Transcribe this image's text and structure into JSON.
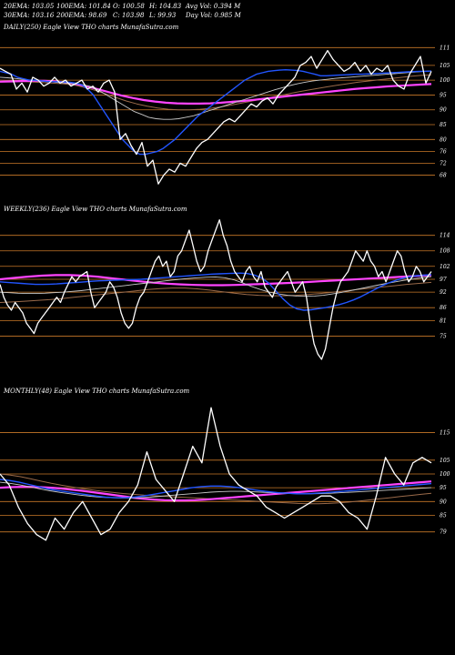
{
  "stats": {
    "ema20": "20EMA: 103.05",
    "ema100": "100EMA: 101.84",
    "open": "O: 100.58",
    "high": "H: 104.83",
    "avgvol": "Avg Vol: 0.394  M",
    "ema30": "30EMA: 103.16",
    "ema200": "200EMA: 98.69",
    "close": "C: 103.98",
    "low": "L: 99.93",
    "dayvol": "Day Vol: 0.985 M"
  },
  "colors": {
    "background": "#000000",
    "price": "#ffffff",
    "ema_short": "#2255ff",
    "ema_mid": "#c8c8c8",
    "ema_long": "#ff44ff",
    "ema_dark": "#9a6a4a",
    "hline": "#c87828"
  },
  "chart_data": [
    {
      "type": "line",
      "label": "DAILY(250) Eagle   View  THO charts MunafaSutra.com",
      "yticks": [
        111,
        105,
        100,
        95,
        90,
        85,
        80,
        76,
        72,
        68
      ],
      "ylim": [
        62,
        116
      ],
      "series": [
        {
          "role": "price",
          "values": [
            104,
            103,
            102,
            97,
            99,
            96,
            101,
            100,
            98,
            99,
            101,
            99,
            100,
            98,
            99,
            100,
            97,
            98,
            96,
            99,
            100,
            96,
            80,
            82,
            78,
            75,
            79,
            71,
            73,
            65,
            68,
            70,
            69,
            72,
            71,
            74,
            77,
            79,
            80,
            82,
            84,
            86,
            87,
            86,
            88,
            90,
            92,
            91,
            93,
            94,
            92,
            95,
            97,
            99,
            101,
            105,
            106,
            108,
            104,
            107,
            110,
            107,
            105,
            103,
            104,
            106,
            103,
            105,
            102,
            104,
            103,
            105,
            100,
            98,
            97,
            102,
            105,
            108,
            99,
            103
          ]
        },
        {
          "role": "ema_short",
          "values": [
            103,
            102.5,
            102,
            101,
            100.5,
            100,
            100,
            99.8,
            99.6,
            99.5,
            99.5,
            99.4,
            99.3,
            99,
            98.5,
            97,
            95,
            92,
            89,
            86,
            83,
            80,
            78,
            76,
            75,
            75,
            75.5,
            76,
            77,
            78.5,
            80,
            82,
            84,
            86,
            88,
            89.5,
            91,
            92.5,
            94,
            95.5,
            97,
            98.5,
            100,
            101,
            102,
            102.5,
            103,
            103.2,
            103.4,
            103.5,
            103.4,
            103.3,
            103,
            102.5,
            102,
            101.5,
            101.5,
            101.6,
            101.7,
            101.8,
            101.9,
            102,
            102,
            102.1,
            102.2,
            102.3,
            102.4,
            102.5,
            102.6,
            102.7,
            102.8,
            102.9,
            103,
            103,
            103.05
          ]
        },
        {
          "role": "ema_mid",
          "values": [
            101,
            100.8,
            100.6,
            100.3,
            100,
            99.8,
            99.6,
            99.4,
            99.2,
            99,
            98.8,
            98.5,
            98,
            97,
            95.5,
            94,
            92.5,
            91,
            89.5,
            88.5,
            87.5,
            87,
            86.8,
            86.8,
            87,
            87.5,
            88,
            88.8,
            89.6,
            90.4,
            91.2,
            92,
            92.8,
            93.6,
            94.4,
            95.2,
            96,
            96.8,
            97.5,
            98.2,
            98.8,
            99.3,
            99.7,
            100,
            100.3,
            100.6,
            100.8,
            101,
            101.2,
            101.4,
            101.6,
            101.8,
            102,
            102.2,
            102.4,
            102.6,
            102.8,
            103,
            103.16
          ]
        },
        {
          "role": "ema_dark",
          "values": [
            100,
            99.8,
            99.6,
            99.4,
            99.2,
            99,
            98.8,
            98.4,
            97.6,
            96.6,
            95.4,
            94.2,
            93,
            92,
            91.2,
            90.6,
            90.2,
            90,
            90,
            90.2,
            90.5,
            91,
            91.6,
            92.3,
            93,
            93.7,
            94.4,
            95.1,
            95.8,
            96.5,
            97.1,
            97.7,
            98.3,
            98.8,
            99.3,
            99.7,
            100.1,
            100.5,
            100.9,
            101.3,
            101.6,
            101.84
          ]
        },
        {
          "role": "ema_long",
          "values": [
            99.5,
            99.6,
            99.7,
            99.8,
            99.8,
            99.6,
            99.2,
            98.6,
            97.8,
            96.8,
            95.8,
            94.8,
            94,
            93.3,
            92.8,
            92.4,
            92.2,
            92.1,
            92.1,
            92.2,
            92.4,
            92.7,
            93,
            93.4,
            93.8,
            94.2,
            94.6,
            95,
            95.4,
            95.8,
            96.2,
            96.6,
            97,
            97.3,
            97.6,
            97.9,
            98.1,
            98.3,
            98.5,
            98.69
          ]
        }
      ]
    },
    {
      "type": "line",
      "label": "WEEKLY(236) Eagle   View  THO charts MunafaSutra.com",
      "yticks": [
        114,
        108,
        102,
        97,
        92,
        86,
        81,
        75
      ],
      "ylim": [
        60,
        122
      ],
      "series": [
        {
          "role": "price",
          "values": [
            95,
            90,
            87,
            85,
            88,
            86,
            84,
            80,
            78,
            76,
            80,
            82,
            84,
            86,
            88,
            90,
            88,
            92,
            95,
            98,
            96,
            98,
            99,
            100,
            92,
            86,
            88,
            90,
            92,
            96,
            94,
            90,
            84,
            80,
            78,
            80,
            86,
            90,
            92,
            96,
            100,
            104,
            106,
            102,
            104,
            98,
            100,
            106,
            108,
            112,
            116,
            110,
            104,
            100,
            102,
            108,
            112,
            116,
            120,
            114,
            110,
            104,
            100,
            98,
            96,
            100,
            102,
            98,
            96,
            100,
            94,
            92,
            90,
            94,
            96,
            98,
            100,
            96,
            92,
            94,
            96,
            90,
            80,
            72,
            68,
            66,
            70,
            78,
            86,
            92,
            96,
            98,
            100,
            104,
            108,
            106,
            104,
            108,
            104,
            102,
            98,
            100,
            96,
            100,
            104,
            108,
            106,
            100,
            96,
            98,
            102,
            100,
            96,
            98,
            100
          ]
        },
        {
          "role": "ema_short",
          "values": [
            96,
            95.8,
            95.6,
            95.4,
            95.2,
            95,
            95,
            95.1,
            95.2,
            95.4,
            95.6,
            95.8,
            96,
            96.2,
            96.4,
            96.5,
            96.6,
            96.7,
            96.8,
            96.9,
            97,
            97.2,
            97.4,
            97.6,
            97.8,
            98,
            98.2,
            98.4,
            98.6,
            98.8,
            99,
            99.1,
            99.2,
            99.3,
            99.4,
            99.2,
            98.6,
            97.5,
            95.5,
            92.5,
            89.5,
            87,
            85.5,
            85,
            85.2,
            85.6,
            86,
            86.6,
            87.2,
            88,
            89,
            90.2,
            91.6,
            93,
            94.4,
            95.6,
            96.6,
            97.4,
            98,
            98.4,
            98.6,
            98.8
          ]
        },
        {
          "role": "ema_mid",
          "values": [
            92,
            91.8,
            91.6,
            91.5,
            91.5,
            91.6,
            91.8,
            92,
            92.3,
            92.6,
            93,
            93.4,
            93.8,
            94.2,
            94.6,
            95,
            95.4,
            95.8,
            96.2,
            96.6,
            97,
            97.3,
            97.6,
            97.8,
            97.9,
            97.6,
            96.8,
            95.6,
            94.2,
            93,
            92,
            91.3,
            90.8,
            90.5,
            90.4,
            90.5,
            90.8,
            91.3,
            91.9,
            92.6,
            93.3,
            94,
            94.7,
            95.4,
            96,
            96.6,
            97.1,
            97.6,
            98
          ]
        },
        {
          "role": "ema_dark",
          "values": [
            88,
            88.2,
            88.5,
            88.8,
            89.1,
            89.5,
            90,
            90.5,
            91,
            91.5,
            92,
            92.5,
            93,
            93.4,
            93.6,
            93.6,
            93.3,
            92.8,
            92.2,
            91.6,
            91.1,
            90.8,
            90.6,
            90.6,
            90.8,
            91.1,
            91.5,
            92,
            92.5,
            93,
            93.5,
            94,
            94.5,
            95,
            95.4,
            95.8
          ]
        },
        {
          "role": "ema_long",
          "values": [
            97,
            97.5,
            98,
            98.4,
            98.6,
            98.6,
            98.4,
            98,
            97.4,
            96.8,
            96.2,
            95.7,
            95.3,
            95,
            94.8,
            94.7,
            94.7,
            94.8,
            95,
            95.2,
            95.4,
            95.6,
            95.9,
            96.2,
            96.5,
            96.8,
            97.1,
            97.4,
            97.7,
            98,
            98.3,
            98.6
          ]
        }
      ]
    },
    {
      "type": "line",
      "label": "MONTHLY(48) Eagle   View  THO charts MunafaSutra.com",
      "yticks": [
        115,
        105,
        100,
        95,
        90,
        85,
        79
      ],
      "ylim": [
        70,
        128
      ],
      "series": [
        {
          "role": "price",
          "values": [
            100,
            96,
            88,
            82,
            78,
            76,
            84,
            80,
            86,
            90,
            84,
            78,
            80,
            86,
            90,
            96,
            108,
            98,
            94,
            90,
            100,
            110,
            104,
            124,
            110,
            100,
            96,
            94,
            92,
            88,
            86,
            84,
            86,
            88,
            90,
            92,
            92,
            90,
            86,
            84,
            80,
            92,
            106,
            100,
            96,
            104,
            106,
            104
          ]
        },
        {
          "role": "ema_short",
          "values": [
            98,
            97.6,
            97,
            96.2,
            95.4,
            94.6,
            94,
            93.5,
            93,
            92.5,
            92,
            91.6,
            91.4,
            91.4,
            91.6,
            92,
            92.6,
            93.2,
            93.8,
            94.4,
            95,
            95.4,
            95.6,
            95.6,
            95.4,
            95,
            94.5,
            94,
            93.6,
            93.2,
            93,
            92.8,
            92.8,
            93,
            93.2,
            93.5,
            93.8,
            94.1,
            94.4,
            94.7,
            95,
            95.3,
            95.6,
            95.9,
            96.2,
            96.5
          ]
        },
        {
          "role": "ema_mid",
          "values": [
            97,
            96.6,
            96,
            95.3,
            94.6,
            93.9,
            93.3,
            92.8,
            92.3,
            91.9,
            91.6,
            91.4,
            91.3,
            91.3,
            91.4,
            91.6,
            91.9,
            92.2,
            92.5,
            92.8,
            93.1,
            93.4,
            93.6,
            93.7,
            93.7,
            93.6,
            93.4,
            93.2,
            93,
            92.9,
            92.8,
            92.8,
            92.9,
            93,
            93.2,
            93.4,
            93.6,
            93.8,
            94,
            94.2,
            94.4,
            94.6,
            94.8,
            95
          ]
        },
        {
          "role": "ema_dark",
          "values": [
            100,
            99.6,
            99,
            98.2,
            97.4,
            96.6,
            95.9,
            95.3,
            94.7,
            94.2,
            93.7,
            93.3,
            92.9,
            92.6,
            92.3,
            92.1,
            91.9,
            91.7,
            91.5,
            91.3,
            91.1,
            90.9,
            90.7,
            90.5,
            90.3,
            90.1,
            89.9,
            89.7,
            89.5,
            89.3,
            89.2,
            89.2,
            89.3,
            89.5,
            89.8,
            90.2,
            90.6,
            91,
            91.4,
            91.8,
            92.2,
            92.6,
            93
          ]
        },
        {
          "role": "ema_long",
          "values": [
            95,
            95.2,
            95.3,
            95.3,
            95.2,
            95,
            94.7,
            94.3,
            93.9,
            93.4,
            92.9,
            92.4,
            91.9,
            91.4,
            91,
            90.7,
            90.5,
            90.4,
            90.4,
            90.5,
            90.7,
            91,
            91.3,
            91.6,
            91.9,
            92.2,
            92.5,
            92.8,
            93.1,
            93.4,
            93.7,
            94,
            94.3,
            94.6,
            94.9,
            95.2,
            95.5,
            95.8,
            96.1,
            96.4,
            96.7,
            97,
            97.3
          ]
        }
      ]
    }
  ]
}
